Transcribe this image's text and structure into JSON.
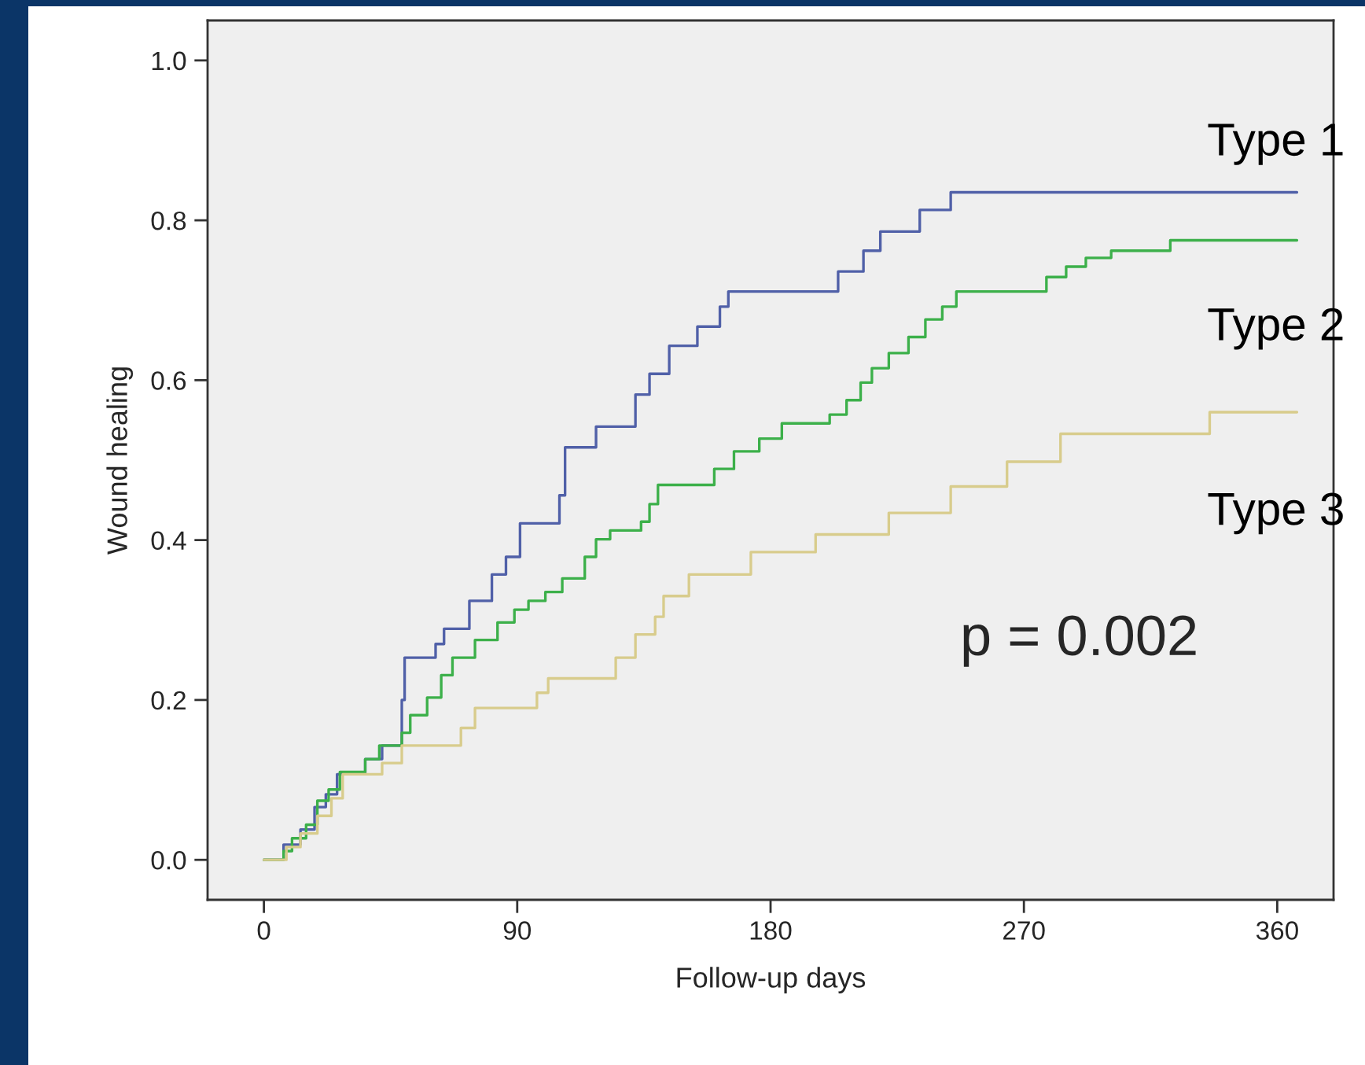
{
  "chart_data": {
    "type": "step",
    "xlabel": "Follow-up days",
    "ylabel": "Wound healing",
    "xlim": [
      -20,
      380
    ],
    "ylim": [
      -0.05,
      1.05
    ],
    "xticks": [
      0,
      90,
      180,
      270,
      360
    ],
    "yticks": [
      {
        "value": 0,
        "label": "0.0"
      },
      {
        "value": 0.2,
        "label": "0.2"
      },
      {
        "value": 0.4,
        "label": "0.4"
      },
      {
        "value": 0.6,
        "label": "0.6"
      },
      {
        "value": 0.8,
        "label": "0.8"
      },
      {
        "value": 1.0,
        "label": "1.0"
      }
    ],
    "grid": false,
    "legend": false,
    "annotations": [
      "p = 0.002"
    ],
    "series": [
      {
        "name": "Type 1",
        "color": "#5060a8",
        "x": [
          0,
          7,
          13,
          18,
          22,
          26,
          36,
          42,
          49,
          50,
          61,
          64,
          73,
          81,
          86,
          91,
          105,
          107,
          118,
          132,
          137,
          144,
          154,
          162,
          165,
          204,
          213,
          219,
          233,
          244,
          367
        ],
        "values": [
          0,
          0.019,
          0.038,
          0.066,
          0.082,
          0.107,
          0.126,
          0.143,
          0.2,
          0.253,
          0.27,
          0.289,
          0.324,
          0.357,
          0.379,
          0.421,
          0.456,
          0.516,
          0.542,
          0.582,
          0.608,
          0.643,
          0.667,
          0.692,
          0.711,
          0.736,
          0.762,
          0.786,
          0.813,
          0.835,
          0.835
        ]
      },
      {
        "name": "Type 2",
        "color": "#3cb04a",
        "x": [
          0,
          7,
          10,
          15,
          19,
          23,
          27,
          36,
          41,
          49,
          52,
          58,
          63,
          67,
          75,
          83,
          89,
          94,
          100,
          106,
          114,
          118,
          123,
          134,
          137,
          140,
          160,
          167,
          176,
          184,
          201,
          207,
          212,
          216,
          222,
          229,
          235,
          241,
          246,
          278,
          285,
          292,
          301,
          322,
          367
        ],
        "values": [
          0,
          0.011,
          0.027,
          0.044,
          0.074,
          0.088,
          0.11,
          0.126,
          0.143,
          0.159,
          0.181,
          0.203,
          0.231,
          0.253,
          0.275,
          0.297,
          0.313,
          0.324,
          0.335,
          0.352,
          0.379,
          0.401,
          0.412,
          0.423,
          0.445,
          0.469,
          0.489,
          0.511,
          0.527,
          0.546,
          0.557,
          0.575,
          0.597,
          0.615,
          0.634,
          0.654,
          0.676,
          0.692,
          0.711,
          0.729,
          0.742,
          0.753,
          0.762,
          0.775,
          0.775
        ]
      },
      {
        "name": "Type 3",
        "color": "#d8cc8c",
        "x": [
          0,
          8,
          13,
          19,
          24,
          28,
          42,
          49,
          70,
          75,
          97,
          101,
          125,
          132,
          139,
          142,
          151,
          173,
          196,
          222,
          244,
          264,
          283,
          336,
          367
        ],
        "values": [
          0,
          0.016,
          0.033,
          0.055,
          0.077,
          0.107,
          0.121,
          0.143,
          0.165,
          0.19,
          0.209,
          0.227,
          0.253,
          0.282,
          0.304,
          0.33,
          0.357,
          0.385,
          0.407,
          0.434,
          0.467,
          0.498,
          0.533,
          0.56,
          0.56
        ]
      }
    ]
  }
}
